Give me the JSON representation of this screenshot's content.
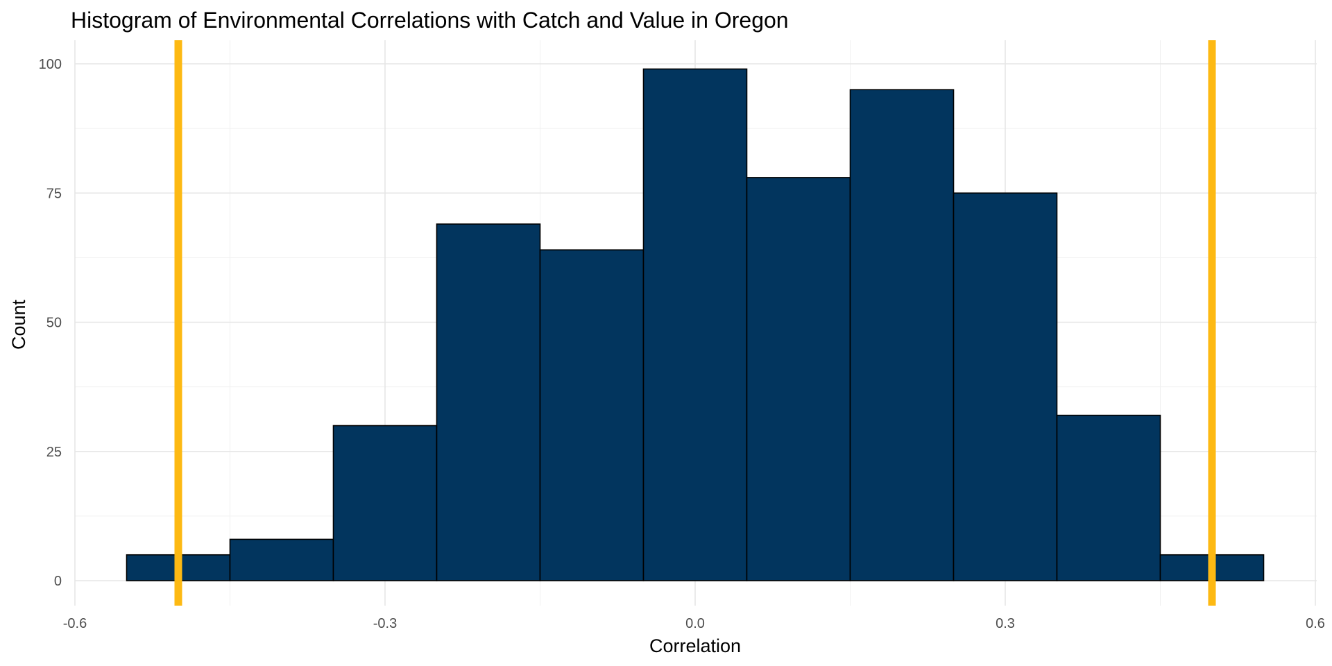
{
  "chart_data": {
    "type": "bar",
    "title": "Histogram of Environmental Correlations with Catch and Value in Oregon",
    "xlabel": "Correlation",
    "ylabel": "Count",
    "xlim": [
      -0.6,
      0.6
    ],
    "ylim": [
      0,
      100
    ],
    "x_ticks": [
      -0.6,
      -0.3,
      0.0,
      0.3,
      0.6
    ],
    "x_tick_labels": [
      "-0.6",
      "-0.3",
      "0.0",
      "0.3",
      "0.6"
    ],
    "y_ticks": [
      0,
      25,
      50,
      75,
      100
    ],
    "y_tick_labels": [
      "0",
      "25",
      "50",
      "75",
      "100"
    ],
    "bin_width": 0.1,
    "bin_centers": [
      -0.5,
      -0.4,
      -0.3,
      -0.2,
      -0.1,
      0.0,
      0.1,
      0.2,
      0.3,
      0.4,
      0.5
    ],
    "values": [
      5,
      8,
      30,
      69,
      64,
      99,
      78,
      95,
      75,
      32,
      5
    ],
    "reference_lines_x": [
      -0.5,
      0.5
    ],
    "bar_color": "#02355E",
    "bar_outline_color": "#000000",
    "reference_line_color": "#FDB913",
    "grid": true,
    "legend": "none"
  }
}
